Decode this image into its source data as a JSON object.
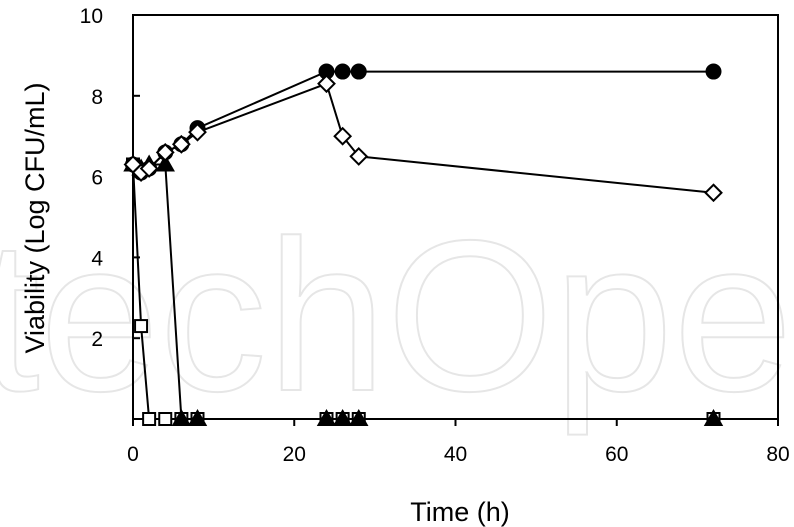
{
  "watermark_text": "techOpen",
  "chart_data": {
    "type": "line",
    "title": "",
    "xlabel": "Time (h)",
    "ylabel": "Viability (Log CFU/mL)",
    "xlim": [
      0,
      80
    ],
    "ylim": [
      0,
      10
    ],
    "xticks": [
      0,
      20,
      40,
      60,
      80
    ],
    "yticks": [
      2,
      4,
      6,
      8,
      10
    ],
    "grid": false,
    "legend": "none",
    "series": [
      {
        "marker": "filled-circle",
        "x": [
          0,
          1,
          2,
          4,
          6,
          8,
          24,
          26,
          28,
          72
        ],
        "y": [
          6.3,
          6.1,
          6.2,
          6.6,
          6.8,
          7.2,
          8.6,
          8.6,
          8.6,
          8.6
        ]
      },
      {
        "marker": "open-diamond",
        "x": [
          0,
          1,
          2,
          4,
          6,
          8,
          24,
          26,
          28,
          72
        ],
        "y": [
          6.3,
          6.1,
          6.2,
          6.6,
          6.8,
          7.1,
          8.3,
          7.0,
          6.5,
          5.6
        ]
      },
      {
        "marker": "filled-triangle",
        "x": [
          0,
          1,
          2,
          4,
          6,
          8,
          24,
          26,
          28,
          72
        ],
        "y": [
          6.3,
          6.2,
          6.3,
          6.3,
          0,
          0,
          0,
          0,
          0,
          0
        ]
      },
      {
        "marker": "open-square",
        "x": [
          0,
          1,
          2,
          4,
          6,
          8,
          24,
          26,
          28,
          72
        ],
        "y": [
          6.3,
          2.3,
          0,
          0,
          0,
          0,
          0,
          0,
          0,
          0
        ]
      }
    ]
  }
}
